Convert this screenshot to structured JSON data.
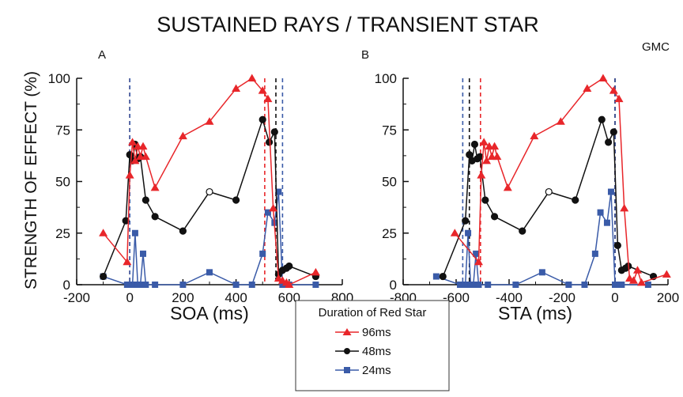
{
  "title": "SUSTAINED RAYS / TRANSIENT STAR",
  "credit": "GMC",
  "ylabel": "STRENGTH OF EFFECT (%)",
  "legend": {
    "title": "Duration of Red Star",
    "entries": [
      "96ms",
      "48ms",
      "24ms"
    ]
  },
  "colors": {
    "96ms": "#e8262a",
    "48ms": "#111111",
    "24ms": "#3a5ba8"
  },
  "chart_data": [
    {
      "panel": "A",
      "type": "line",
      "xlabel": "SOA (ms)",
      "ylabel": "STRENGTH OF EFFECT (%)",
      "xlim": [
        -200,
        800
      ],
      "ylim": [
        0,
        100
      ],
      "xticks": [
        -200,
        0,
        200,
        400,
        600,
        800
      ],
      "yticks": [
        0,
        25,
        50,
        75,
        100
      ],
      "vlines": [
        {
          "x": 0,
          "series": "96ms"
        },
        {
          "x": 0,
          "series": "48ms"
        },
        {
          "x": 0,
          "series": "24ms"
        },
        {
          "x": 508,
          "series": "96ms"
        },
        {
          "x": 550,
          "series": "48ms"
        },
        {
          "x": 575,
          "series": "24ms"
        }
      ],
      "series": [
        {
          "name": "96ms",
          "marker": "triangle",
          "x": [
            -100,
            -10,
            0,
            10,
            20,
            30,
            40,
            50,
            60,
            95,
            200,
            300,
            400,
            460,
            500,
            520,
            540,
            560,
            575,
            590,
            600,
            700
          ],
          "y": [
            25,
            11,
            53,
            69,
            60,
            67,
            62,
            67,
            62,
            47,
            72,
            79,
            95,
            100,
            94,
            90,
            37,
            3,
            2,
            1,
            0,
            6
          ]
        },
        {
          "name": "48ms",
          "marker": "circle",
          "x": [
            -100,
            -15,
            0,
            10,
            20,
            30,
            40,
            60,
            95,
            200,
            300,
            400,
            500,
            525,
            545,
            560,
            575,
            590,
            600,
            700
          ],
          "y": [
            4,
            31,
            63,
            60,
            68,
            61,
            62,
            41,
            33,
            26,
            45,
            41,
            80,
            69,
            74,
            5,
            7,
            8,
            9,
            4
          ],
          "open_points": [
            300
          ]
        },
        {
          "name": "24ms",
          "marker": "square",
          "x": [
            -100,
            -10,
            0,
            10,
            20,
            30,
            40,
            50,
            60,
            95,
            200,
            300,
            400,
            460,
            500,
            520,
            545,
            560,
            575,
            590,
            600,
            700
          ],
          "y": [
            4,
            0,
            0,
            0,
            25,
            0,
            0,
            15,
            0,
            0,
            0,
            6,
            0,
            0,
            15,
            35,
            30,
            45,
            0,
            0,
            0,
            0
          ]
        }
      ]
    },
    {
      "panel": "B",
      "type": "line",
      "xlabel": "STA (ms)",
      "ylabel": "STRENGTH OF EFFECT (%)",
      "xlim": [
        -800,
        200
      ],
      "ylim": [
        0,
        100
      ],
      "xticks": [
        -800,
        -600,
        -400,
        -200,
        0,
        200
      ],
      "yticks": [
        0,
        25,
        50,
        75,
        100
      ],
      "vlines": [
        {
          "x": -575,
          "series": "24ms"
        },
        {
          "x": -550,
          "series": "48ms"
        },
        {
          "x": -508,
          "series": "96ms"
        },
        {
          "x": 0,
          "series": "96ms"
        },
        {
          "x": 0,
          "series": "48ms"
        },
        {
          "x": 0,
          "series": "24ms"
        }
      ],
      "series": [
        {
          "name": "96ms",
          "marker": "triangle",
          "x": [
            -605,
            -515,
            -505,
            -495,
            -485,
            -475,
            -465,
            -455,
            -445,
            -405,
            -305,
            -205,
            -105,
            -45,
            -5,
            15,
            35,
            55,
            70,
            85,
            100,
            195
          ],
          "y": [
            25,
            11,
            53,
            69,
            60,
            67,
            62,
            67,
            62,
            47,
            72,
            79,
            95,
            100,
            94,
            90,
            37,
            3,
            2,
            7,
            1,
            5
          ]
        },
        {
          "name": "48ms",
          "marker": "circle",
          "x": [
            -650,
            -565,
            -550,
            -540,
            -530,
            -520,
            -510,
            -490,
            -455,
            -350,
            -250,
            -150,
            -50,
            -25,
            -5,
            10,
            25,
            40,
            50,
            145
          ],
          "y": [
            4,
            31,
            63,
            60,
            68,
            61,
            62,
            41,
            33,
            26,
            45,
            41,
            80,
            69,
            74,
            19,
            7,
            8,
            9,
            4
          ],
          "open_points": [
            -250
          ]
        },
        {
          "name": "24ms",
          "marker": "square",
          "x": [
            -675,
            -585,
            -575,
            -565,
            -555,
            -545,
            -535,
            -525,
            -515,
            -480,
            -375,
            -275,
            -175,
            -115,
            -75,
            -55,
            -30,
            -15,
            0,
            15,
            25,
            125
          ],
          "y": [
            4,
            0,
            0,
            0,
            25,
            0,
            0,
            15,
            0,
            0,
            0,
            6,
            0,
            0,
            15,
            35,
            30,
            45,
            0,
            0,
            0,
            0
          ]
        }
      ]
    }
  ]
}
